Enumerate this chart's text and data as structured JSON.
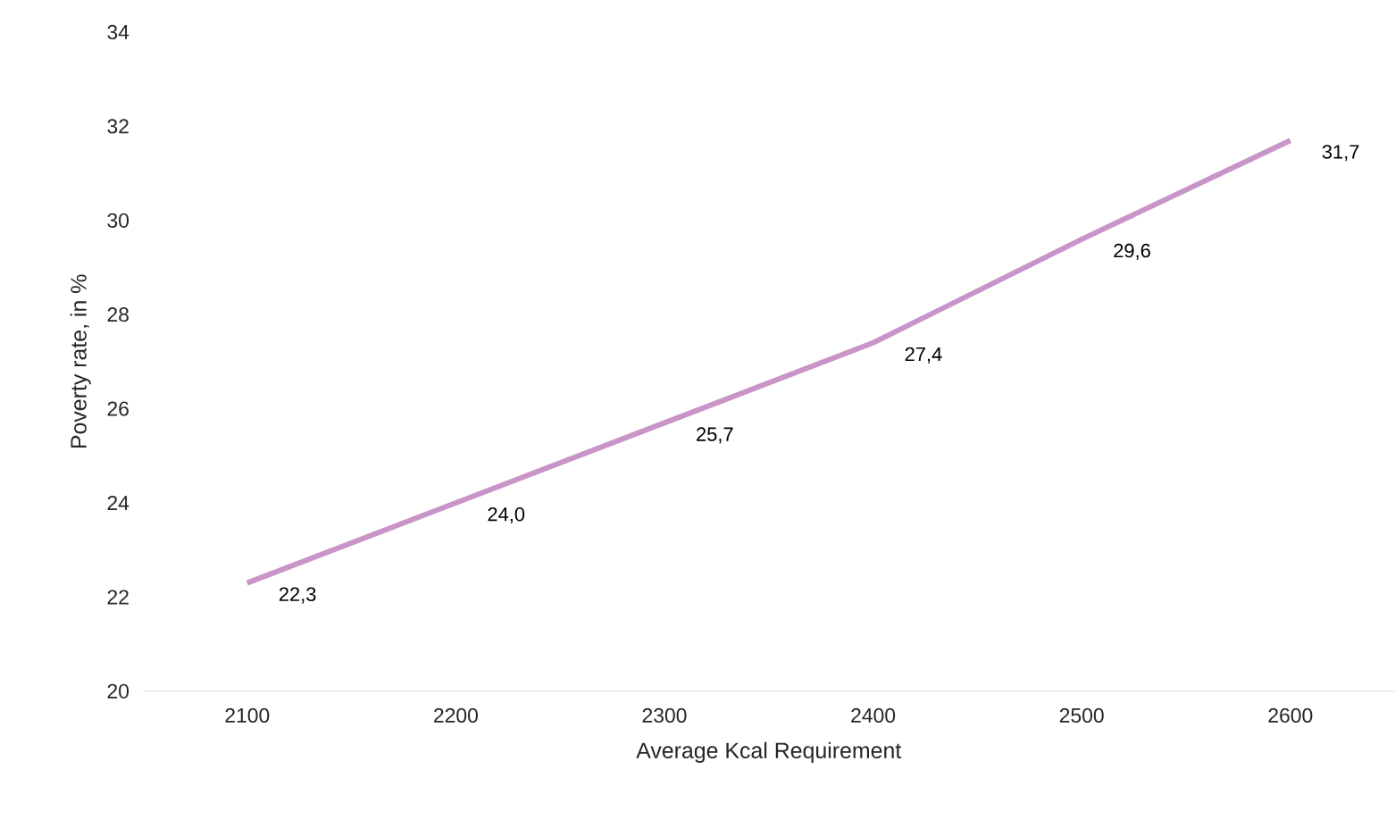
{
  "chart_data": {
    "type": "line",
    "xlabel": "Average Kcal Requirement",
    "ylabel": "Poverty rate, in %",
    "categories": [
      "2100",
      "2200",
      "2300",
      "2400",
      "2500",
      "2600"
    ],
    "values": [
      22.3,
      24.0,
      25.7,
      27.4,
      29.6,
      31.7
    ],
    "value_labels": [
      "22,3",
      "24,0",
      "25,7",
      "27,4",
      "29,6",
      "31,7"
    ],
    "color": "#c994c7",
    "ylim": [
      20,
      34
    ],
    "yticks": [
      20,
      22,
      24,
      26,
      28,
      30,
      32,
      34
    ]
  }
}
